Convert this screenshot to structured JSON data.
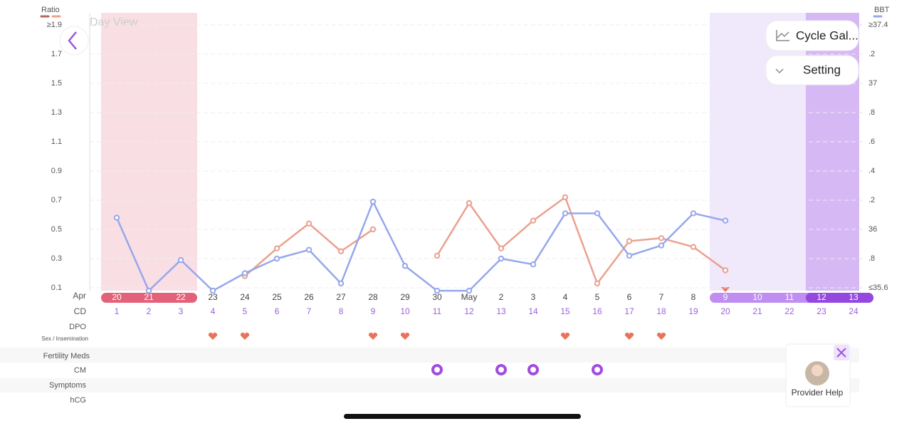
{
  "header": {
    "title": "Day View"
  },
  "buttons": {
    "gallery": "Cycle Gal...",
    "setting": "Setting"
  },
  "chart_data": {
    "type": "line",
    "month_start": "Apr",
    "categories": [
      "20",
      "21",
      "22",
      "23",
      "24",
      "25",
      "26",
      "27",
      "28",
      "29",
      "30",
      "May",
      "2",
      "3",
      "4",
      "5",
      "6",
      "7",
      "8",
      "9",
      "10",
      "11",
      "12",
      "13"
    ],
    "cycle_days": [
      1,
      2,
      3,
      4,
      5,
      6,
      7,
      8,
      9,
      10,
      11,
      12,
      13,
      14,
      15,
      16,
      17,
      18,
      19,
      20,
      21,
      22,
      23,
      24
    ],
    "series": [
      {
        "name": "Ratio",
        "color": "#eba18f",
        "axis": "y",
        "values": [
          null,
          null,
          null,
          null,
          0.18,
          0.37,
          0.54,
          0.35,
          0.5,
          null,
          0.32,
          0.68,
          0.37,
          0.56,
          0.72,
          0.13,
          0.42,
          0.44,
          0.38,
          0.22,
          null,
          null,
          null,
          null
        ]
      },
      {
        "name": "BBT",
        "color": "#97a7ec",
        "axis": "y2",
        "values": [
          36.08,
          35.58,
          35.79,
          35.58,
          35.7,
          35.8,
          35.86,
          35.63,
          36.19,
          35.75,
          35.58,
          35.58,
          35.8,
          35.76,
          36.11,
          36.11,
          35.82,
          35.89,
          36.11,
          36.06,
          null,
          null,
          null,
          null
        ]
      }
    ],
    "ylim": [
      0.1,
      1.9
    ],
    "yticks": [
      {
        "value": 1.9,
        "label": "≥1.9"
      },
      1.7,
      1.5,
      1.3,
      1.1,
      0.9,
      0.7,
      0.5,
      0.3,
      0.1
    ],
    "y2lim": [
      35.6,
      37.4
    ],
    "y2ticks": [
      {
        "value": 37.4,
        "label": "≥37.4"
      },
      {
        "value": 37.2,
        "label": ".2"
      },
      37,
      {
        "value": 36.8,
        "label": ".8"
      },
      {
        "value": 36.6,
        "label": ".6"
      },
      {
        "value": 36.4,
        "label": ".4"
      },
      {
        "value": 36.2,
        "label": ".2"
      },
      36,
      {
        "value": 35.8,
        "label": ".8"
      },
      {
        "value": 35.6,
        "label": "≤35.6"
      }
    ],
    "grid": true
  },
  "rows": {
    "cd": "CD",
    "dpo": "DPO",
    "sex": "Sex / Insemination",
    "meds": "Fertility Meds",
    "cm": "CM",
    "symptoms": "Symptoms",
    "hcg": "hCG"
  },
  "provider": {
    "label": "Provider Help"
  }
}
